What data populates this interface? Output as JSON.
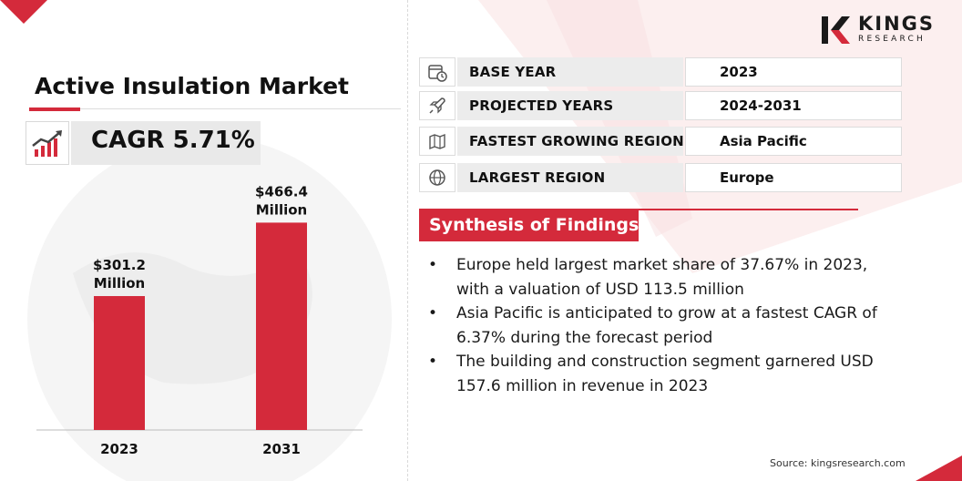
{
  "title": "Active Insulation Market",
  "cagr": "CAGR 5.71%",
  "logo": {
    "name": "KINGS",
    "sub": "RESEARCH"
  },
  "info_rows": [
    {
      "icon": "calendar-clock-icon",
      "label": "BASE YEAR",
      "value": "2023"
    },
    {
      "icon": "rocket-icon",
      "label": "PROJECTED YEARS",
      "value": "2024-2031"
    },
    {
      "icon": "region-map-icon",
      "label": "FASTEST GROWING REGION",
      "value": "Asia Pacific"
    },
    {
      "icon": "globe-icon",
      "label": "LARGEST REGION",
      "value": "Europe"
    }
  ],
  "findings": {
    "title": "Synthesis of Findings",
    "bullet_symbol": "•",
    "items": [
      {
        "line1": "Europe held largest market share of 37.67% in 2023,",
        "line2": "with a valuation of USD 113.5 million"
      },
      {
        "line1": "Asia Pacific is anticipated to grow at a fastest CAGR of",
        "line2": "6.37% during the forecast period"
      },
      {
        "line1": "The building and construction segment garnered USD",
        "line2": "157.6 million in revenue in 2023"
      }
    ]
  },
  "source": "Source: kingsresearch.com",
  "colors": {
    "accent": "#d42a3b",
    "bar": "#d42a3b",
    "label_bg": "#ececec"
  },
  "chart_data": {
    "type": "bar",
    "categories": [
      "2023",
      "2031"
    ],
    "values": [
      301.2,
      466.4
    ],
    "value_labels": [
      {
        "line1": "$301.2",
        "line2": "Million"
      },
      {
        "line1": "$466.4",
        "line2": "Million"
      }
    ],
    "title": "",
    "xlabel": "",
    "ylabel": "",
    "ylim": [
      0,
      500
    ],
    "grid": false
  }
}
